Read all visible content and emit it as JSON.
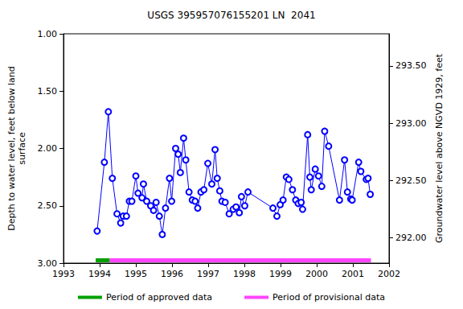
{
  "chart_data": {
    "type": "line",
    "title": "USGS 395957076155201 LN  2041",
    "x_label": null,
    "y_label": "Depth to water level, feet below land\nsurface",
    "y2_label": "Groundwater level above NGVD 1929, feet",
    "x": [
      1993.93,
      1994.13,
      1994.24,
      1994.35,
      1994.48,
      1994.58,
      1994.65,
      1994.74,
      1994.82,
      1994.89,
      1995.0,
      1995.06,
      1995.17,
      1995.21,
      1995.3,
      1995.41,
      1995.49,
      1995.56,
      1995.65,
      1995.73,
      1995.82,
      1995.93,
      1995.99,
      1996.1,
      1996.17,
      1996.23,
      1996.32,
      1996.38,
      1996.47,
      1996.56,
      1996.64,
      1996.71,
      1996.8,
      1996.88,
      1996.99,
      1997.1,
      1997.19,
      1997.25,
      1997.32,
      1997.38,
      1997.47,
      1997.58,
      1997.69,
      1997.77,
      1997.86,
      1997.92,
      1998.01,
      1998.1,
      1998.79,
      1998.9,
      1998.99,
      1999.07,
      1999.16,
      1999.23,
      1999.33,
      1999.42,
      1999.49,
      1999.57,
      1999.61,
      1999.75,
      1999.81,
      1999.85,
      1999.96,
      2000.05,
      2000.14,
      2000.22,
      2000.33,
      2000.63,
      2000.77,
      2000.85,
      2000.94,
      2000.98,
      2001.16,
      2001.22,
      2001.37,
      2001.42,
      2001.48
    ],
    "series": [
      {
        "color": "#0000ff",
        "marker": "circle",
        "values": [
          2.72,
          2.12,
          1.68,
          2.26,
          2.57,
          2.65,
          2.59,
          2.59,
          2.46,
          2.46,
          2.24,
          2.39,
          2.43,
          2.31,
          2.46,
          2.5,
          2.54,
          2.47,
          2.59,
          2.75,
          2.52,
          2.26,
          2.46,
          2.0,
          2.05,
          2.21,
          1.91,
          2.1,
          2.38,
          2.45,
          2.46,
          2.52,
          2.38,
          2.36,
          2.13,
          2.31,
          2.01,
          2.26,
          2.37,
          2.46,
          2.47,
          2.57,
          2.53,
          2.51,
          2.56,
          2.42,
          2.5,
          2.38,
          2.52,
          2.59,
          2.49,
          2.45,
          2.25,
          2.27,
          2.36,
          2.45,
          2.48,
          2.47,
          2.53,
          1.88,
          2.25,
          2.36,
          2.18,
          2.24,
          2.33,
          1.85,
          1.98,
          2.45,
          2.1,
          2.38,
          2.44,
          2.45,
          2.12,
          2.2,
          2.27,
          2.26,
          2.4
        ]
      }
    ],
    "periods": [
      {
        "name": "Period of approved data",
        "color": "#00a000",
        "start": 1993.89,
        "end": 1994.28
      },
      {
        "name": "Period of provisional data",
        "color": "#ff44ff",
        "start": 1994.28,
        "end": 2001.5
      }
    ],
    "xlim": [
      1993,
      2002
    ],
    "xticks": [
      1993,
      1994,
      1995,
      1996,
      1997,
      1998,
      1999,
      2000,
      2001,
      2002
    ],
    "ylim": [
      1,
      3
    ],
    "yticks": [
      {
        "value": 1,
        "label": "1.00"
      },
      {
        "value": 1.5,
        "label": "1.50"
      },
      {
        "value": 2,
        "label": "2.00"
      },
      {
        "value": 2.5,
        "label": "2.50"
      },
      {
        "value": 3,
        "label": "3.00"
      }
    ],
    "y_inverted": true,
    "y2lim": [
      291.78,
      293.78
    ],
    "y2ticks": [
      {
        "value": 292,
        "label": "292.00"
      },
      {
        "value": 292.5,
        "label": "292.50"
      },
      {
        "value": 293,
        "label": "293.00"
      },
      {
        "value": 293.5,
        "label": "293.50"
      }
    ],
    "grid": false,
    "legend": "bottom"
  }
}
